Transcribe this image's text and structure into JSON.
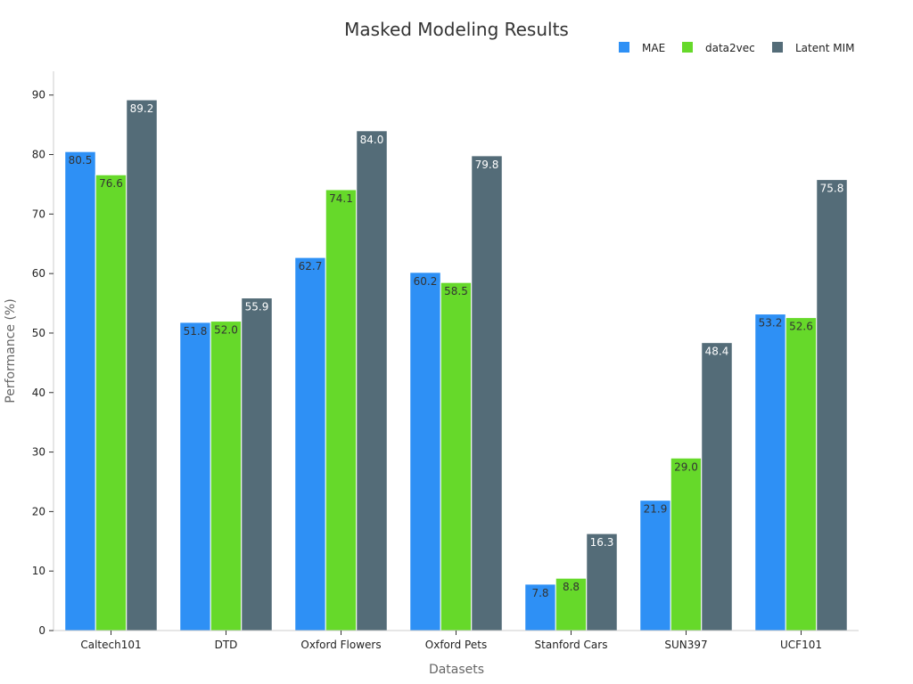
{
  "chart_data": {
    "type": "bar",
    "title": "Masked Modeling Results",
    "xlabel": "Datasets",
    "ylabel": "Performance (%)",
    "ylim": [
      0,
      94
    ],
    "yticks": [
      0,
      10,
      20,
      30,
      40,
      50,
      60,
      70,
      80,
      90
    ],
    "grid": false,
    "legend_position": "top-right",
    "categories": [
      "Caltech101",
      "DTD",
      "Oxford Flowers",
      "Oxford Pets",
      "Stanford Cars",
      "SUN397",
      "UCF101"
    ],
    "series": [
      {
        "name": "MAE",
        "color": "#2e90f5",
        "label_color": "#333333",
        "values": [
          80.5,
          51.8,
          62.7,
          60.2,
          7.8,
          21.9,
          53.2
        ]
      },
      {
        "name": "data2vec",
        "color": "#66d92a",
        "label_color": "#333333",
        "values": [
          76.6,
          52.0,
          74.1,
          58.5,
          8.8,
          29.0,
          52.6
        ]
      },
      {
        "name": "Latent MIM",
        "color": "#546c78",
        "label_color": "#ffffff",
        "values": [
          89.2,
          55.9,
          84.0,
          79.8,
          16.3,
          48.4,
          75.8
        ]
      }
    ]
  }
}
